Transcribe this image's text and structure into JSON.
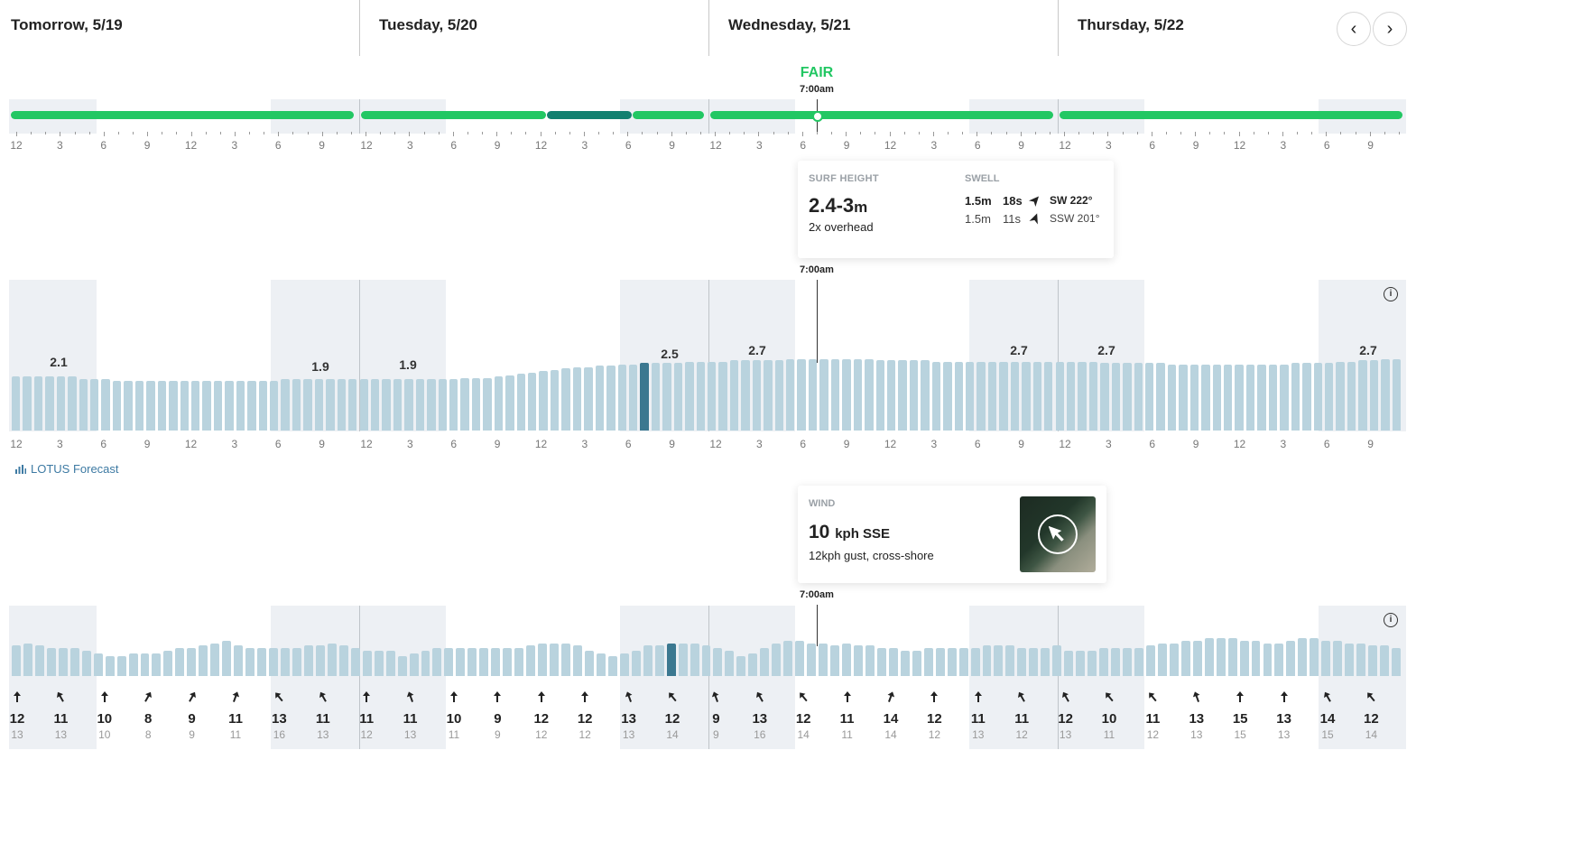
{
  "days": [
    {
      "title": "Tomorrow, 5/19"
    },
    {
      "title": "Tuesday, 5/20"
    },
    {
      "title": "Wednesday, 5/21"
    },
    {
      "title": "Thursday, 5/22"
    }
  ],
  "nav": {
    "prev_icon": "chevron-left-icon",
    "next_icon": "chevron-right-icon",
    "prev_glyph": "‹",
    "next_glyph": "›"
  },
  "rating": {
    "label": "FAIR",
    "time": "7:00am",
    "color": "#22c763"
  },
  "rating_segments": [
    {
      "day": 0,
      "from": 0,
      "to": 1,
      "level": "fair"
    },
    {
      "day": 1,
      "from": 0,
      "to": 0.54,
      "level": "fair"
    },
    {
      "day": 1,
      "from": 0.54,
      "to": 0.79,
      "level": "fair-to-good"
    },
    {
      "day": 1,
      "from": 0.79,
      "to": 1,
      "level": "fair"
    },
    {
      "day": 2,
      "from": 0,
      "to": 1,
      "level": "fair"
    },
    {
      "day": 3,
      "from": 0,
      "to": 1,
      "level": "fair"
    }
  ],
  "colors": {
    "fair": "#22c763",
    "fair-to-good": "#128070",
    "bar": "#b9d3de",
    "bar_selected": "#3b7890",
    "shade": "#edf0f4",
    "lotus": "#3d7aa3"
  },
  "hour_ticks": [
    "12",
    "3",
    "6",
    "9",
    "12",
    "3",
    "6",
    "9"
  ],
  "surf_card": {
    "title": "SURF HEIGHT",
    "height": "2.4-3",
    "unit": "m",
    "description": "2x overhead",
    "swell_title": "SWELL",
    "swells": [
      {
        "height": "1.5m",
        "period": "18s",
        "direction": "SW 222°",
        "deg": 222,
        "bold": true
      },
      {
        "height": "1.5m",
        "period": "11s",
        "direction": "SSW 201°",
        "deg": 201,
        "bold": false
      }
    ]
  },
  "surf_time": "7:00am",
  "surf_labels": [
    "2.1",
    "1.9",
    "1.9",
    "2.5",
    "2.7",
    "2.7",
    "2.7",
    "2.7"
  ],
  "surf_heights": [
    2.0,
    2.0,
    2.0,
    2.0,
    2.0,
    2.0,
    1.9,
    1.9,
    1.9,
    1.85,
    1.85,
    1.85,
    1.85,
    1.85,
    1.85,
    1.85,
    1.85,
    1.85,
    1.85,
    1.85,
    1.85,
    1.85,
    1.85,
    1.85,
    1.9,
    1.9,
    1.9,
    1.9,
    1.9,
    1.9,
    1.9,
    1.9,
    1.9,
    1.9,
    1.9,
    1.9,
    1.9,
    1.9,
    1.9,
    1.9,
    1.95,
    1.95,
    1.95,
    2.0,
    2.05,
    2.1,
    2.15,
    2.2,
    2.25,
    2.3,
    2.35,
    2.35,
    2.4,
    2.4,
    2.45,
    2.45,
    2.5,
    2.5,
    2.5,
    2.5,
    2.55,
    2.55,
    2.55,
    2.55,
    2.6,
    2.6,
    2.6,
    2.6,
    2.6,
    2.65,
    2.65,
    2.65,
    2.65,
    2.65,
    2.65,
    2.65,
    2.65,
    2.6,
    2.6,
    2.6,
    2.6,
    2.6,
    2.55,
    2.55,
    2.55,
    2.55,
    2.55,
    2.55,
    2.55,
    2.55,
    2.55,
    2.55,
    2.55,
    2.55,
    2.55,
    2.55,
    2.55,
    2.5,
    2.5,
    2.5,
    2.5,
    2.5,
    2.5,
    2.45,
    2.45,
    2.45,
    2.45,
    2.45,
    2.45,
    2.45,
    2.45,
    2.45,
    2.45,
    2.45,
    2.5,
    2.5,
    2.5,
    2.5,
    2.55,
    2.55,
    2.6,
    2.6,
    2.65,
    2.65
  ],
  "surf_selected_index": 56,
  "lotus": {
    "label": "LOTUS Forecast",
    "icon": "bar-chart-icon"
  },
  "wind_card": {
    "title": "WIND",
    "speed": "10",
    "unit": "kph SSE",
    "description": "12kph gust, cross-shore",
    "map_icon": "wind-direction-map-icon"
  },
  "wind_time": "7:00am",
  "wind_speeds": [
    12,
    13,
    12,
    11,
    11,
    11,
    10,
    9,
    8,
    8,
    9,
    9,
    9,
    10,
    11,
    11,
    12,
    13,
    14,
    12,
    11,
    11,
    11,
    11,
    11,
    12,
    12,
    13,
    12,
    11,
    10,
    10,
    10,
    8,
    9,
    10,
    11,
    11,
    11,
    11,
    11,
    11,
    11,
    11,
    12,
    13,
    13,
    13,
    12,
    10,
    9,
    8,
    9,
    10,
    12,
    12,
    13,
    13,
    13,
    12,
    11,
    10,
    8,
    9,
    11,
    13,
    14,
    14,
    13,
    13,
    12,
    13,
    12,
    12,
    11,
    11,
    10,
    10,
    11,
    11,
    11,
    11,
    11,
    12,
    12,
    12,
    11,
    11,
    11,
    12,
    10,
    10,
    10,
    11,
    11,
    11,
    11,
    12,
    13,
    13,
    14,
    14,
    15,
    15,
    15,
    14,
    14,
    13,
    13,
    14,
    15,
    15,
    14,
    14,
    13,
    13,
    12,
    12,
    11
  ],
  "wind_selected_index": 56,
  "wind_items": [
    {
      "speed": "12",
      "gust": "13",
      "deg": 0
    },
    {
      "speed": "11",
      "gust": "13",
      "deg": -30
    },
    {
      "speed": "10",
      "gust": "10",
      "deg": 0
    },
    {
      "speed": "8",
      "gust": "8",
      "deg": 30
    },
    {
      "speed": "9",
      "gust": "9",
      "deg": 30
    },
    {
      "speed": "11",
      "gust": "11",
      "deg": 20
    },
    {
      "speed": "13",
      "gust": "16",
      "deg": -40
    },
    {
      "speed": "11",
      "gust": "13",
      "deg": -30
    },
    {
      "speed": "11",
      "gust": "12",
      "deg": 0
    },
    {
      "speed": "11",
      "gust": "13",
      "deg": -20
    },
    {
      "speed": "10",
      "gust": "11",
      "deg": 0
    },
    {
      "speed": "9",
      "gust": "9",
      "deg": 0
    },
    {
      "speed": "12",
      "gust": "12",
      "deg": 0
    },
    {
      "speed": "12",
      "gust": "12",
      "deg": 0
    },
    {
      "speed": "13",
      "gust": "13",
      "deg": -20
    },
    {
      "speed": "12",
      "gust": "14",
      "deg": -40
    },
    {
      "speed": "9",
      "gust": "9",
      "deg": -20
    },
    {
      "speed": "13",
      "gust": "16",
      "deg": -30
    },
    {
      "speed": "12",
      "gust": "14",
      "deg": -40
    },
    {
      "speed": "11",
      "gust": "11",
      "deg": 0
    },
    {
      "speed": "14",
      "gust": "14",
      "deg": 20
    },
    {
      "speed": "12",
      "gust": "12",
      "deg": 0
    },
    {
      "speed": "11",
      "gust": "13",
      "deg": 0
    },
    {
      "speed": "11",
      "gust": "12",
      "deg": -30
    },
    {
      "speed": "12",
      "gust": "13",
      "deg": -30
    },
    {
      "speed": "10",
      "gust": "11",
      "deg": -40
    },
    {
      "speed": "11",
      "gust": "12",
      "deg": -40
    },
    {
      "speed": "13",
      "gust": "13",
      "deg": -20
    },
    {
      "speed": "15",
      "gust": "15",
      "deg": 0
    },
    {
      "speed": "13",
      "gust": "13",
      "deg": 0
    },
    {
      "speed": "14",
      "gust": "15",
      "deg": -30
    },
    {
      "speed": "12",
      "gust": "14",
      "deg": -40
    }
  ]
}
